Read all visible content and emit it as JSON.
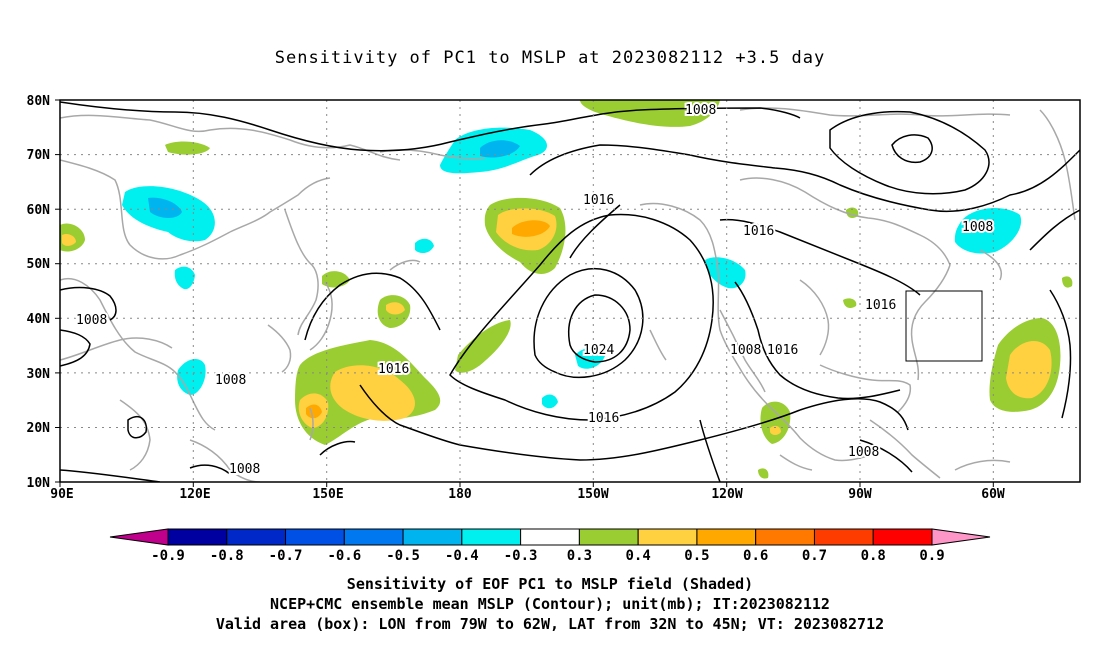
{
  "title": "Sensitivity of PC1 to MSLP at 2023082112 +3.5 day",
  "map": {
    "lat_labels": [
      "80N",
      "70N",
      "60N",
      "50N",
      "40N",
      "30N",
      "20N",
      "10N"
    ],
    "lon_labels": [
      "90E",
      "120E",
      "150E",
      "180",
      "150W",
      "120W",
      "90W",
      "60W"
    ],
    "contour_labels": [
      "1008",
      "1016",
      "1016",
      "1008",
      "1008",
      "1008",
      "1016",
      "1016",
      "1024",
      "1016",
      "1008",
      "1016",
      "1008",
      "1008"
    ],
    "valid_box": {
      "lon_from": "79W",
      "lon_to": "62W",
      "lat_from": "32N",
      "lat_to": "45N"
    }
  },
  "colorbar": {
    "labels": [
      "-0.9",
      "-0.8",
      "-0.7",
      "-0.6",
      "-0.5",
      "-0.4",
      "-0.3",
      "0.3",
      "0.4",
      "0.5",
      "0.6",
      "0.7",
      "0.8",
      "0.9"
    ],
    "colors": [
      "#0000a0",
      "#0028c8",
      "#0050e6",
      "#0078f0",
      "#00b4f0",
      "#00f0f0",
      "#ffffff",
      "#9acd32",
      "#ffd040",
      "#ffa800",
      "#ff7800",
      "#ff3c00",
      "#ff0000"
    ],
    "under_color": "#c0008c",
    "over_color": "#ff96c8"
  },
  "captions": {
    "line1": "Sensitivity of EOF PC1 to MSLP field (Shaded)",
    "line2": "NCEP+CMC ensemble mean MSLP (Contour); unit(mb); IT:2023082112",
    "line3": "Valid area (box): LON from 79W to 62W, LAT from 32N to 45N; VT: 2023082712"
  }
}
